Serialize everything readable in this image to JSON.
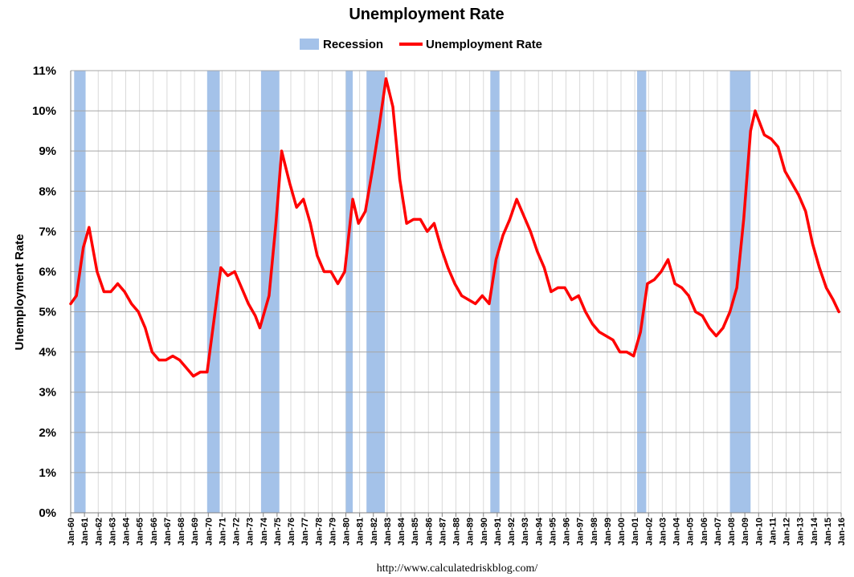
{
  "chart_data": {
    "type": "line",
    "title": "Unemployment Rate",
    "xlabel": "",
    "ylabel": "Unemployment Rate",
    "source": "http://www.calculatedriskblog.com/",
    "ylim": [
      0,
      11
    ],
    "y_ticks": [
      "0%",
      "1%",
      "2%",
      "3%",
      "4%",
      "5%",
      "6%",
      "7%",
      "8%",
      "9%",
      "10%",
      "11%"
    ],
    "x_range": [
      "Jan-60",
      "Jan-16"
    ],
    "x_ticks": [
      "Jan-60",
      "Jan-61",
      "Jan-62",
      "Jan-63",
      "Jan-64",
      "Jan-65",
      "Jan-66",
      "Jan-67",
      "Jan-68",
      "Jan-69",
      "Jan-70",
      "Jan-71",
      "Jan-72",
      "Jan-73",
      "Jan-74",
      "Jan-75",
      "Jan-76",
      "Jan-77",
      "Jan-78",
      "Jan-79",
      "Jan-80",
      "Jan-81",
      "Jan-82",
      "Jan-83",
      "Jan-84",
      "Jan-85",
      "Jan-86",
      "Jan-87",
      "Jan-88",
      "Jan-89",
      "Jan-90",
      "Jan-91",
      "Jan-92",
      "Jan-93",
      "Jan-94",
      "Jan-95",
      "Jan-96",
      "Jan-97",
      "Jan-98",
      "Jan-99",
      "Jan-00",
      "Jan-01",
      "Jan-02",
      "Jan-03",
      "Jan-04",
      "Jan-05",
      "Jan-06",
      "Jan-07",
      "Jan-08",
      "Jan-09",
      "Jan-10",
      "Jan-11",
      "Jan-12",
      "Jan-13",
      "Jan-14",
      "Jan-15",
      "Jan-16"
    ],
    "grid": true,
    "legend_position": "top-center",
    "legend": [
      {
        "label": "Recession",
        "type": "area"
      },
      {
        "label": "Unemployment Rate",
        "type": "line"
      }
    ],
    "colors": {
      "unemployment": "#ff0000",
      "recession": "#a4c2e9",
      "grid": "#a6a6a6",
      "axis": "#808080"
    },
    "recessions": [
      {
        "start": "Apr-60",
        "end": "Feb-61"
      },
      {
        "start": "Dec-69",
        "end": "Nov-70"
      },
      {
        "start": "Nov-73",
        "end": "Mar-75"
      },
      {
        "start": "Jan-80",
        "end": "Jul-80"
      },
      {
        "start": "Jul-81",
        "end": "Nov-82"
      },
      {
        "start": "Jul-90",
        "end": "Mar-91"
      },
      {
        "start": "Mar-01",
        "end": "Nov-01"
      },
      {
        "start": "Dec-07",
        "end": "Jun-09"
      }
    ],
    "series": [
      {
        "name": "Unemployment Rate",
        "points": [
          [
            "Jan-60",
            5.2
          ],
          [
            "Jun-60",
            5.4
          ],
          [
            "Dec-60",
            6.6
          ],
          [
            "May-61",
            7.1
          ],
          [
            "Dec-61",
            6.0
          ],
          [
            "Jun-62",
            5.5
          ],
          [
            "Dec-62",
            5.5
          ],
          [
            "Jun-63",
            5.7
          ],
          [
            "Dec-63",
            5.5
          ],
          [
            "Jun-64",
            5.2
          ],
          [
            "Dec-64",
            5.0
          ],
          [
            "Jun-65",
            4.6
          ],
          [
            "Dec-65",
            4.0
          ],
          [
            "Jun-66",
            3.8
          ],
          [
            "Dec-66",
            3.8
          ],
          [
            "Jun-67",
            3.9
          ],
          [
            "Dec-67",
            3.8
          ],
          [
            "Jun-68",
            3.6
          ],
          [
            "Dec-68",
            3.4
          ],
          [
            "Jun-69",
            3.5
          ],
          [
            "Dec-69",
            3.5
          ],
          [
            "Jun-70",
            4.8
          ],
          [
            "Dec-70",
            6.1
          ],
          [
            "Jun-71",
            5.9
          ],
          [
            "Dec-71",
            6.0
          ],
          [
            "Jun-72",
            5.6
          ],
          [
            "Dec-72",
            5.2
          ],
          [
            "Jun-73",
            4.9
          ],
          [
            "Oct-73",
            4.6
          ],
          [
            "Jun-74",
            5.4
          ],
          [
            "Dec-74",
            7.2
          ],
          [
            "May-75",
            9.0
          ],
          [
            "Dec-75",
            8.2
          ],
          [
            "Jun-76",
            7.6
          ],
          [
            "Dec-76",
            7.8
          ],
          [
            "Jun-77",
            7.2
          ],
          [
            "Dec-77",
            6.4
          ],
          [
            "Jun-78",
            6.0
          ],
          [
            "Dec-78",
            6.0
          ],
          [
            "Jun-79",
            5.7
          ],
          [
            "Dec-79",
            6.0
          ],
          [
            "Jul-80",
            7.8
          ],
          [
            "Dec-80",
            7.2
          ],
          [
            "Jun-81",
            7.5
          ],
          [
            "Dec-81",
            8.5
          ],
          [
            "Jun-82",
            9.6
          ],
          [
            "Dec-82",
            10.8
          ],
          [
            "Jun-83",
            10.1
          ],
          [
            "Dec-83",
            8.3
          ],
          [
            "Jun-84",
            7.2
          ],
          [
            "Dec-84",
            7.3
          ],
          [
            "Jun-85",
            7.3
          ],
          [
            "Dec-85",
            7.0
          ],
          [
            "Jun-86",
            7.2
          ],
          [
            "Dec-86",
            6.6
          ],
          [
            "Jun-87",
            6.1
          ],
          [
            "Dec-87",
            5.7
          ],
          [
            "Jun-88",
            5.4
          ],
          [
            "Dec-88",
            5.3
          ],
          [
            "Jun-89",
            5.2
          ],
          [
            "Dec-89",
            5.4
          ],
          [
            "Jun-90",
            5.2
          ],
          [
            "Dec-90",
            6.3
          ],
          [
            "Jun-91",
            6.9
          ],
          [
            "Dec-91",
            7.3
          ],
          [
            "Jun-92",
            7.8
          ],
          [
            "Dec-92",
            7.4
          ],
          [
            "Jun-93",
            7.0
          ],
          [
            "Dec-93",
            6.5
          ],
          [
            "Jun-94",
            6.1
          ],
          [
            "Dec-94",
            5.5
          ],
          [
            "Jun-95",
            5.6
          ],
          [
            "Dec-95",
            5.6
          ],
          [
            "Jun-96",
            5.3
          ],
          [
            "Dec-96",
            5.4
          ],
          [
            "Jun-97",
            5.0
          ],
          [
            "Dec-97",
            4.7
          ],
          [
            "Jun-98",
            4.5
          ],
          [
            "Dec-98",
            4.4
          ],
          [
            "Jun-99",
            4.3
          ],
          [
            "Dec-99",
            4.0
          ],
          [
            "Jun-00",
            4.0
          ],
          [
            "Dec-00",
            3.9
          ],
          [
            "Jun-01",
            4.5
          ],
          [
            "Dec-01",
            5.7
          ],
          [
            "Jun-02",
            5.8
          ],
          [
            "Dec-02",
            6.0
          ],
          [
            "Jun-03",
            6.3
          ],
          [
            "Dec-03",
            5.7
          ],
          [
            "Jun-04",
            5.6
          ],
          [
            "Dec-04",
            5.4
          ],
          [
            "Jun-05",
            5.0
          ],
          [
            "Dec-05",
            4.9
          ],
          [
            "Jun-06",
            4.6
          ],
          [
            "Dec-06",
            4.4
          ],
          [
            "Jun-07",
            4.6
          ],
          [
            "Dec-07",
            5.0
          ],
          [
            "Jun-08",
            5.6
          ],
          [
            "Dec-08",
            7.3
          ],
          [
            "Jun-09",
            9.5
          ],
          [
            "Oct-09",
            10.0
          ],
          [
            "Jun-10",
            9.4
          ],
          [
            "Dec-10",
            9.3
          ],
          [
            "Jun-11",
            9.1
          ],
          [
            "Dec-11",
            8.5
          ],
          [
            "Jun-12",
            8.2
          ],
          [
            "Dec-12",
            7.9
          ],
          [
            "Jun-13",
            7.5
          ],
          [
            "Dec-13",
            6.7
          ],
          [
            "Jun-14",
            6.1
          ],
          [
            "Dec-14",
            5.6
          ],
          [
            "Jun-15",
            5.3
          ],
          [
            "Nov-15",
            5.0
          ]
        ]
      }
    ]
  }
}
